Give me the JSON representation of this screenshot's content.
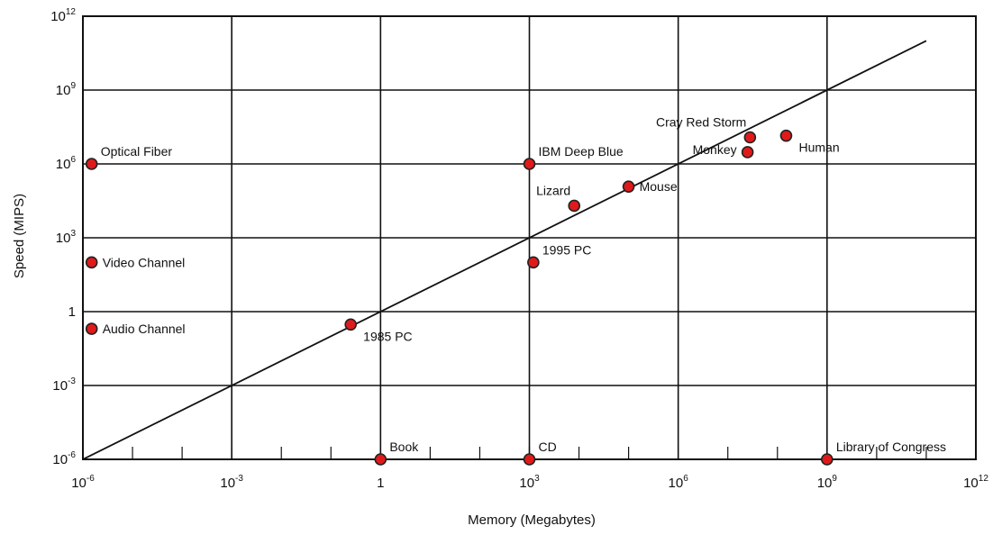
{
  "chart_data": {
    "type": "scatter",
    "title": "",
    "xlabel": "Memory (Megabytes)",
    "ylabel": "Speed (MIPS)",
    "x_scale": "log",
    "y_scale": "log",
    "xlim": [
      1e-06,
      1000000000000.0
    ],
    "ylim": [
      1e-06,
      1000000000000.0
    ],
    "grid": true,
    "x_ticks": [
      {
        "base": "10",
        "exp": "-6"
      },
      {
        "base": "10",
        "exp": "-3"
      },
      {
        "base": "1",
        "exp": ""
      },
      {
        "base": "10",
        "exp": "3"
      },
      {
        "base": "10",
        "exp": "6"
      },
      {
        "base": "10",
        "exp": "9"
      },
      {
        "base": "10",
        "exp": "12"
      }
    ],
    "y_ticks": [
      {
        "base": "10",
        "exp": "-6"
      },
      {
        "base": "10",
        "exp": "-3"
      },
      {
        "base": "1",
        "exp": ""
      },
      {
        "base": "10",
        "exp": "3"
      },
      {
        "base": "10",
        "exp": "6"
      },
      {
        "base": "10",
        "exp": "9"
      },
      {
        "base": "10",
        "exp": "12"
      }
    ],
    "points": [
      {
        "label": "Optical Fiber",
        "x": 1.5e-06,
        "y": 1000000.0,
        "label_pos": "right-up"
      },
      {
        "label": "Video Channel",
        "x": 1.5e-06,
        "y": 100,
        "label_pos": "right"
      },
      {
        "label": "Audio Channel",
        "x": 1.5e-06,
        "y": 0.2,
        "label_pos": "right"
      },
      {
        "label": "1985 PC",
        "x": 0.25,
        "y": 0.3,
        "label_pos": "right-down"
      },
      {
        "label": "Book",
        "x": 1,
        "y": 1e-06,
        "label_pos": "right-up"
      },
      {
        "label": "CD",
        "x": 1000,
        "y": 1e-06,
        "label_pos": "right-up"
      },
      {
        "label": "Library of Congress",
        "x": 1000000000.0,
        "y": 1e-06,
        "label_pos": "right-up"
      },
      {
        "label": "1995 PC",
        "x": 1200,
        "y": 100,
        "label_pos": "right-up"
      },
      {
        "label": "IBM Deep Blue",
        "x": 1000,
        "y": 1000000.0,
        "label_pos": "right-up"
      },
      {
        "label": "Lizard",
        "x": 8000,
        "y": 20000,
        "label_pos": "left-up"
      },
      {
        "label": "Mouse",
        "x": 100000,
        "y": 120000,
        "label_pos": "right"
      },
      {
        "label": "Monkey",
        "x": 25000000,
        "y": 3000000,
        "label_pos": "left"
      },
      {
        "label": "Cray Red Storm",
        "x": 28000000,
        "y": 12000000,
        "label_pos": "left-up"
      },
      {
        "label": "Human",
        "x": 150000000,
        "y": 14000000,
        "label_pos": "right-down"
      }
    ],
    "trend_line": {
      "x_start": 1e-06,
      "y_start": 1e-06,
      "x_end": 100000000000.0,
      "y_end": 100000000000.0
    }
  }
}
